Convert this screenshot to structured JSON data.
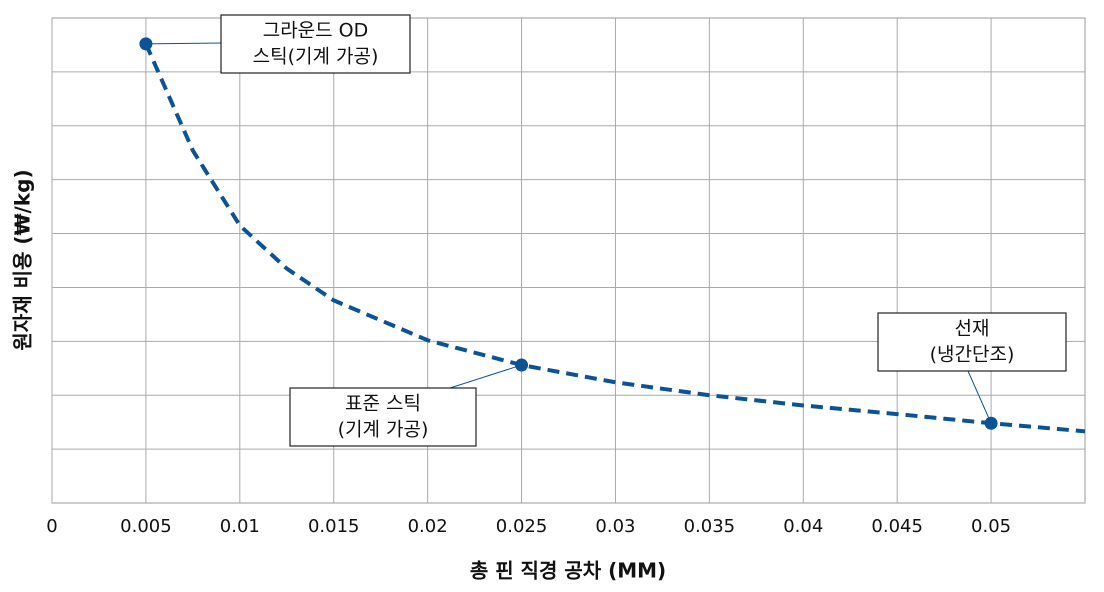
{
  "chart_data": {
    "type": "line",
    "x_label": "총 핀 직경 공차 (MM)",
    "y_label": "원자재 비용 (₩/kg)",
    "x": [
      0.005,
      0.0075,
      0.01,
      0.0125,
      0.015,
      0.02,
      0.025,
      0.03,
      0.035,
      0.04,
      0.045,
      0.05,
      0.055
    ],
    "values": [
      8.52,
      6.54,
      5.15,
      4.35,
      3.76,
      3.02,
      2.56,
      2.24,
      2.0,
      1.81,
      1.65,
      1.48,
      1.33
    ],
    "color": "#0b5394",
    "dashed": true,
    "xlim": [
      0,
      0.055
    ],
    "xticks": [
      0,
      0.005,
      0.01,
      0.015,
      0.02,
      0.025,
      0.03,
      0.035,
      0.04,
      0.045,
      0.05
    ],
    "ylim": [
      0,
      9
    ],
    "yticks": [
      1,
      2,
      3,
      4,
      5,
      6,
      7,
      8
    ],
    "ytick_labels": false,
    "grid": true,
    "annotations": [
      {
        "lines": [
          "그라운드 OD",
          "스틱(기계 가공)"
        ],
        "x": 0.005,
        "y": 8.52
      },
      {
        "lines": [
          "표준 스틱",
          "(기계 가공)"
        ],
        "x": 0.025,
        "y": 2.56
      },
      {
        "lines": [
          "선재",
          "(냉간단조)"
        ],
        "x": 0.05,
        "y": 1.48
      }
    ]
  }
}
